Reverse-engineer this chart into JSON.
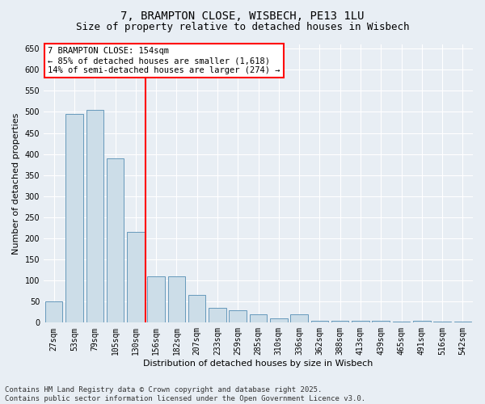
{
  "title_line1": "7, BRAMPTON CLOSE, WISBECH, PE13 1LU",
  "title_line2": "Size of property relative to detached houses in Wisbech",
  "xlabel": "Distribution of detached houses by size in Wisbech",
  "ylabel": "Number of detached properties",
  "categories": [
    "27sqm",
    "53sqm",
    "79sqm",
    "105sqm",
    "130sqm",
    "156sqm",
    "182sqm",
    "207sqm",
    "233sqm",
    "259sqm",
    "285sqm",
    "310sqm",
    "336sqm",
    "362sqm",
    "388sqm",
    "413sqm",
    "439sqm",
    "465sqm",
    "491sqm",
    "516sqm",
    "542sqm"
  ],
  "values": [
    50,
    495,
    505,
    390,
    215,
    110,
    110,
    65,
    35,
    30,
    20,
    10,
    20,
    5,
    5,
    5,
    5,
    2,
    5,
    2,
    2
  ],
  "bar_color": "#ccdde8",
  "bar_edge_color": "#6699bb",
  "vline_color": "red",
  "vline_index": 5,
  "annotation_title": "7 BRAMPTON CLOSE: 154sqm",
  "annotation_line1": "← 85% of detached houses are smaller (1,618)",
  "annotation_line2": "14% of semi-detached houses are larger (274) →",
  "ylim": [
    0,
    660
  ],
  "yticks": [
    0,
    50,
    100,
    150,
    200,
    250,
    300,
    350,
    400,
    450,
    500,
    550,
    600,
    650
  ],
  "footer_line1": "Contains HM Land Registry data © Crown copyright and database right 2025.",
  "footer_line2": "Contains public sector information licensed under the Open Government Licence v3.0.",
  "background_color": "#e8eef4",
  "grid_color": "#ffffff",
  "title_fontsize": 10,
  "subtitle_fontsize": 9,
  "axis_label_fontsize": 8,
  "tick_fontsize": 7,
  "annotation_fontsize": 7.5,
  "footer_fontsize": 6.5
}
